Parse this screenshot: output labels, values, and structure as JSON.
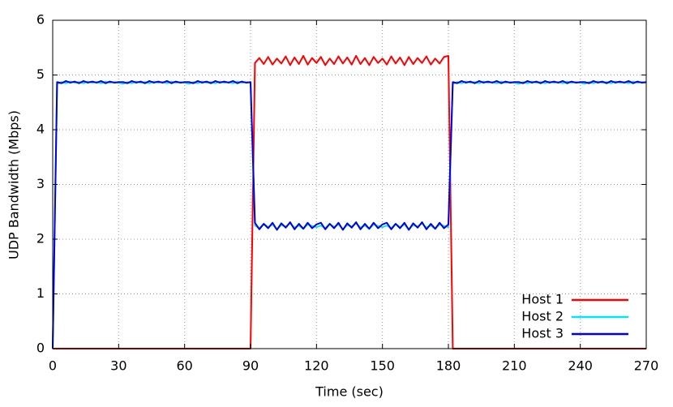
{
  "chart_data": {
    "type": "line",
    "xlabel": "Time (sec)",
    "ylabel": "UDP Bandwidth (Mbps)",
    "xlim": [
      0,
      270
    ],
    "ylim": [
      0,
      6
    ],
    "xticks": [
      0,
      30,
      60,
      90,
      120,
      150,
      180,
      210,
      240,
      270
    ],
    "yticks": [
      0,
      1,
      2,
      3,
      4,
      5,
      6
    ],
    "grid": true,
    "legend": "lower right",
    "x": [
      0,
      2,
      4,
      6,
      8,
      10,
      12,
      14,
      16,
      18,
      20,
      22,
      24,
      26,
      28,
      30,
      32,
      34,
      36,
      38,
      40,
      42,
      44,
      46,
      48,
      50,
      52,
      54,
      56,
      58,
      60,
      62,
      64,
      66,
      68,
      70,
      72,
      74,
      76,
      78,
      80,
      82,
      84,
      86,
      88,
      90,
      92,
      94,
      96,
      98,
      100,
      102,
      104,
      106,
      108,
      110,
      112,
      114,
      116,
      118,
      120,
      122,
      124,
      126,
      128,
      130,
      132,
      134,
      136,
      138,
      140,
      142,
      144,
      146,
      148,
      150,
      152,
      154,
      156,
      158,
      160,
      162,
      164,
      166,
      168,
      170,
      172,
      174,
      176,
      178,
      180,
      182,
      184,
      186,
      188,
      190,
      192,
      194,
      196,
      198,
      200,
      202,
      204,
      206,
      208,
      210,
      212,
      214,
      216,
      218,
      220,
      222,
      224,
      226,
      228,
      230,
      232,
      234,
      236,
      238,
      240,
      242,
      244,
      246,
      248,
      250,
      252,
      254,
      256,
      258,
      260,
      262,
      264,
      266,
      268,
      270
    ],
    "series": [
      {
        "name": "Host 1",
        "color": "#ff0000",
        "values": [
          0,
          0,
          0,
          0,
          0,
          0,
          0,
          0,
          0,
          0,
          0,
          0,
          0,
          0,
          0,
          0,
          0,
          0,
          0,
          0,
          0,
          0,
          0,
          0,
          0,
          0,
          0,
          0,
          0,
          0,
          0,
          0,
          0,
          0,
          0,
          0,
          0,
          0,
          0,
          0,
          0,
          0,
          0,
          0,
          0,
          0,
          5.22,
          5.31,
          5.2,
          5.33,
          5.19,
          5.3,
          5.21,
          5.34,
          5.18,
          5.32,
          5.2,
          5.35,
          5.19,
          5.31,
          5.22,
          5.33,
          5.18,
          5.3,
          5.2,
          5.34,
          5.21,
          5.32,
          5.19,
          5.35,
          5.2,
          5.31,
          5.18,
          5.33,
          5.22,
          5.3,
          5.19,
          5.34,
          5.21,
          5.32,
          5.18,
          5.33,
          5.2,
          5.31,
          5.22,
          5.34,
          5.19,
          5.3,
          5.21,
          5.33,
          5.35,
          0,
          0,
          0,
          0,
          0,
          0,
          0,
          0,
          0,
          0,
          0,
          0,
          0,
          0,
          0,
          0,
          0,
          0,
          0,
          0,
          0,
          0,
          0,
          0,
          0,
          0,
          0,
          0,
          0,
          0,
          0,
          0,
          0,
          0,
          0,
          0,
          0,
          0,
          0,
          0,
          0,
          0,
          0,
          0,
          0
        ]
      },
      {
        "name": "Host 2",
        "color": "#00e5ff",
        "values": [
          0,
          4.84,
          4.87,
          4.85,
          4.88,
          4.86,
          4.87,
          4.85,
          4.88,
          4.86,
          4.87,
          4.85,
          4.88,
          4.86,
          4.87,
          4.86,
          4.84,
          4.87,
          4.85,
          4.88,
          4.86,
          4.87,
          4.85,
          4.88,
          4.86,
          4.87,
          4.85,
          4.88,
          4.86,
          4.87,
          4.86,
          4.84,
          4.87,
          4.85,
          4.88,
          4.86,
          4.87,
          4.85,
          4.88,
          4.86,
          4.87,
          4.85,
          4.88,
          4.86,
          4.87,
          4.86,
          2.25,
          2.2,
          2.28,
          2.22,
          2.27,
          2.18,
          2.26,
          2.23,
          2.29,
          2.21,
          2.25,
          2.19,
          2.27,
          2.24,
          2.22,
          2.25,
          2.2,
          2.28,
          2.22,
          2.27,
          2.18,
          2.26,
          2.23,
          2.29,
          2.21,
          2.25,
          2.19,
          2.27,
          2.24,
          2.22,
          2.25,
          2.2,
          2.28,
          2.22,
          2.27,
          2.18,
          2.26,
          2.23,
          2.29,
          2.21,
          2.25,
          2.19,
          2.27,
          2.24,
          2.22,
          4.84,
          4.87,
          4.85,
          4.88,
          4.86,
          4.87,
          4.85,
          4.88,
          4.86,
          4.87,
          4.85,
          4.88,
          4.86,
          4.87,
          4.86,
          4.84,
          4.87,
          4.85,
          4.88,
          4.86,
          4.87,
          4.85,
          4.88,
          4.86,
          4.87,
          4.85,
          4.88,
          4.86,
          4.87,
          4.86,
          4.84,
          4.87,
          4.85,
          4.88,
          4.86,
          4.87,
          4.85,
          4.88,
          4.86,
          4.87,
          4.85,
          4.88,
          4.86,
          4.87,
          4.86
        ]
      },
      {
        "name": "Host 3",
        "color": "#0000e0",
        "values": [
          0,
          4.87,
          4.85,
          4.89,
          4.86,
          4.88,
          4.85,
          4.89,
          4.86,
          4.88,
          4.86,
          4.89,
          4.85,
          4.88,
          4.86,
          4.87,
          4.87,
          4.85,
          4.89,
          4.86,
          4.88,
          4.85,
          4.89,
          4.86,
          4.88,
          4.86,
          4.89,
          4.85,
          4.88,
          4.86,
          4.87,
          4.87,
          4.85,
          4.89,
          4.86,
          4.88,
          4.85,
          4.89,
          4.86,
          4.88,
          4.86,
          4.89,
          4.85,
          4.88,
          4.86,
          4.87,
          2.3,
          2.18,
          2.28,
          2.2,
          2.3,
          2.17,
          2.29,
          2.21,
          2.31,
          2.18,
          2.28,
          2.19,
          2.3,
          2.2,
          2.27,
          2.3,
          2.18,
          2.28,
          2.2,
          2.3,
          2.17,
          2.29,
          2.21,
          2.31,
          2.18,
          2.28,
          2.19,
          2.3,
          2.2,
          2.27,
          2.3,
          2.18,
          2.28,
          2.2,
          2.3,
          2.17,
          2.29,
          2.21,
          2.31,
          2.18,
          2.28,
          2.19,
          2.3,
          2.2,
          2.27,
          4.87,
          4.85,
          4.89,
          4.86,
          4.88,
          4.85,
          4.89,
          4.86,
          4.88,
          4.86,
          4.89,
          4.85,
          4.88,
          4.86,
          4.87,
          4.87,
          4.85,
          4.89,
          4.86,
          4.88,
          4.85,
          4.89,
          4.86,
          4.88,
          4.86,
          4.89,
          4.85,
          4.88,
          4.86,
          4.87,
          4.87,
          4.85,
          4.89,
          4.86,
          4.88,
          4.85,
          4.89,
          4.86,
          4.88,
          4.86,
          4.89,
          4.85,
          4.88,
          4.86,
          4.87
        ]
      }
    ]
  }
}
